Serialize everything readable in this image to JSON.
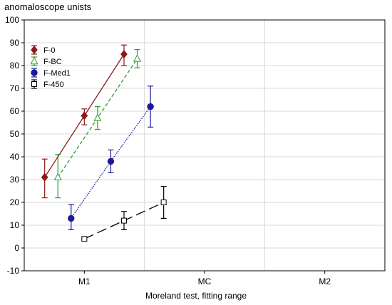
{
  "chart_data": {
    "type": "line",
    "ylabel": "anomaloscope unists",
    "xlabel": "Moreland test, fitting range",
    "categories": [
      "M1",
      "MC",
      "M2"
    ],
    "ylim": [
      -10,
      100
    ],
    "yticks": [
      -10,
      0,
      10,
      20,
      30,
      40,
      50,
      60,
      70,
      80,
      90,
      100
    ],
    "grid": true,
    "legend_position": "top-left",
    "series": [
      {
        "name": "F-0",
        "color": "#8b1a1a",
        "marker": "diamond",
        "line_style": "solid",
        "x": [
          -0.33,
          0.0,
          0.33
        ],
        "values": [
          31,
          58,
          85
        ],
        "lower": [
          22,
          54,
          80
        ],
        "upper": [
          39,
          61,
          89
        ]
      },
      {
        "name": "F-BC",
        "color": "#2e9a2e",
        "marker": "triangle-open",
        "line_style": "dashed",
        "x": [
          -0.22,
          0.11,
          0.44
        ],
        "values": [
          31,
          57,
          83
        ],
        "lower": [
          22,
          52,
          79
        ],
        "upper": [
          41,
          62,
          87
        ]
      },
      {
        "name": "F-Med1",
        "color": "#1a1a9a",
        "marker": "circle",
        "line_style": "dotted",
        "x": [
          -0.11,
          0.22,
          0.55
        ],
        "values": [
          13,
          38,
          62
        ],
        "lower": [
          8,
          33,
          53
        ],
        "upper": [
          19,
          43,
          71
        ]
      },
      {
        "name": "F-450",
        "color": "#000000",
        "marker": "square-open",
        "line_style": "longdash",
        "x": [
          0.0,
          0.33,
          0.66
        ],
        "values": [
          4,
          12,
          20
        ],
        "lower": [
          4,
          8,
          13
        ],
        "upper": [
          4,
          16,
          27
        ]
      }
    ]
  }
}
